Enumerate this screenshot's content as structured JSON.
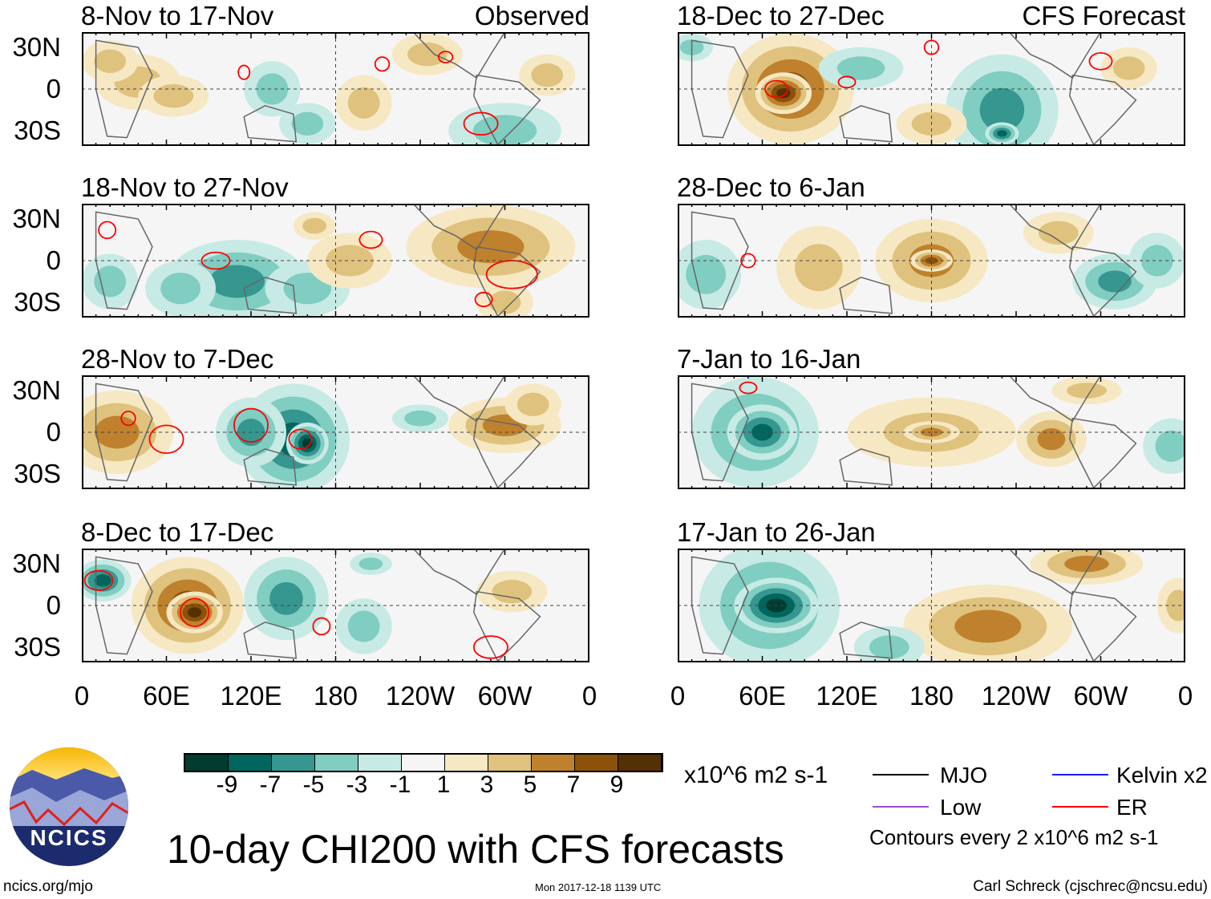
{
  "panels": [
    {
      "title": "8-Nov to 17-Nov",
      "tag": "Observed",
      "blobs": [
        [
          40,
          5,
          30,
          20,
          3
        ],
        [
          65,
          -5,
          25,
          15,
          3
        ],
        [
          135,
          0,
          20,
          20,
          -3
        ],
        [
          160,
          -25,
          20,
          15,
          -3
        ],
        [
          245,
          25,
          25,
          15,
          3
        ],
        [
          300,
          -30,
          40,
          20,
          -3
        ],
        [
          330,
          10,
          20,
          15,
          3
        ],
        [
          20,
          20,
          20,
          15,
          3
        ],
        [
          200,
          -10,
          20,
          20,
          3
        ]
      ],
      "er": [
        [
          283,
          -25,
          12,
          8
        ],
        [
          115,
          12,
          4,
          5
        ],
        [
          213,
          18,
          5,
          5
        ],
        [
          258,
          23,
          5,
          4
        ]
      ]
    },
    {
      "title": "18-Nov to 27-Nov",
      "blobs": [
        [
          110,
          -15,
          50,
          30,
          -5
        ],
        [
          70,
          -20,
          25,
          20,
          -3
        ],
        [
          160,
          -20,
          30,
          20,
          -3
        ],
        [
          290,
          10,
          60,
          30,
          5
        ],
        [
          300,
          -30,
          20,
          15,
          3
        ],
        [
          190,
          0,
          30,
          20,
          3
        ],
        [
          165,
          25,
          15,
          10,
          3
        ],
        [
          20,
          -15,
          20,
          20,
          -3
        ]
      ],
      "er": [
        [
          305,
          -10,
          18,
          10
        ],
        [
          95,
          0,
          10,
          6
        ],
        [
          205,
          15,
          8,
          6
        ],
        [
          285,
          -28,
          6,
          5
        ],
        [
          18,
          22,
          6,
          6
        ]
      ]
    },
    {
      "title": "28-Nov to 7-Dec",
      "blobs": [
        [
          25,
          0,
          40,
          30,
          5
        ],
        [
          150,
          -5,
          40,
          40,
          -7
        ],
        [
          160,
          -8,
          15,
          15,
          -9
        ],
        [
          120,
          0,
          25,
          25,
          -5
        ],
        [
          300,
          5,
          40,
          20,
          5
        ],
        [
          320,
          20,
          20,
          15,
          3
        ],
        [
          240,
          10,
          20,
          10,
          -3
        ]
      ],
      "er": [
        [
          60,
          -5,
          12,
          10
        ],
        [
          155,
          -5,
          8,
          7
        ],
        [
          120,
          5,
          12,
          12
        ],
        [
          33,
          10,
          5,
          5
        ]
      ]
    },
    {
      "title": "8-Dec to 17-Dec",
      "blobs": [
        [
          75,
          0,
          40,
          35,
          7
        ],
        [
          80,
          -5,
          20,
          15,
          9
        ],
        [
          15,
          18,
          20,
          15,
          -7
        ],
        [
          145,
          5,
          30,
          30,
          -5
        ],
        [
          200,
          -15,
          20,
          20,
          -3
        ],
        [
          305,
          10,
          25,
          15,
          3
        ],
        [
          205,
          30,
          15,
          8,
          -3
        ]
      ],
      "er": [
        [
          290,
          -30,
          12,
          8
        ],
        [
          12,
          18,
          10,
          7
        ],
        [
          80,
          -5,
          10,
          10
        ],
        [
          170,
          -15,
          6,
          6
        ]
      ]
    },
    {
      "title": "18-Dec to 27-Dec",
      "tag": "CFS Forecast",
      "blobs": [
        [
          80,
          0,
          45,
          40,
          7
        ],
        [
          75,
          -3,
          20,
          15,
          9
        ],
        [
          130,
          15,
          30,
          15,
          -3
        ],
        [
          230,
          -15,
          40,
          40,
          -5
        ],
        [
          230,
          -32,
          12,
          8,
          -7
        ],
        [
          320,
          15,
          20,
          15,
          3
        ],
        [
          180,
          -25,
          25,
          15,
          3
        ],
        [
          10,
          30,
          15,
          10,
          -3
        ]
      ],
      "er": [
        [
          70,
          0,
          8,
          6
        ],
        [
          300,
          20,
          8,
          6
        ],
        [
          180,
          30,
          5,
          5
        ],
        [
          120,
          5,
          6,
          4
        ]
      ]
    },
    {
      "title": "28-Dec to 6-Jan",
      "blobs": [
        [
          180,
          0,
          40,
          30,
          5
        ],
        [
          180,
          0,
          15,
          8,
          7
        ],
        [
          100,
          -5,
          30,
          30,
          3
        ],
        [
          310,
          -15,
          30,
          20,
          -5
        ],
        [
          340,
          0,
          20,
          20,
          -3
        ],
        [
          20,
          -10,
          25,
          25,
          -3
        ],
        [
          270,
          20,
          25,
          15,
          3
        ]
      ],
      "er": [
        [
          50,
          0,
          5,
          5
        ]
      ]
    },
    {
      "title": "7-Jan to 16-Jan",
      "blobs": [
        [
          55,
          0,
          45,
          40,
          -5
        ],
        [
          60,
          0,
          25,
          20,
          -7
        ],
        [
          180,
          0,
          60,
          25,
          3
        ],
        [
          180,
          0,
          20,
          8,
          5
        ],
        [
          265,
          -5,
          25,
          20,
          5
        ],
        [
          290,
          30,
          25,
          10,
          3
        ],
        [
          350,
          -10,
          20,
          20,
          -3
        ]
      ],
      "er": [
        [
          50,
          32,
          6,
          4
        ]
      ]
    },
    {
      "title": "17-Jan to 26-Jan",
      "blobs": [
        [
          65,
          0,
          50,
          45,
          -5
        ],
        [
          70,
          0,
          30,
          20,
          -9
        ],
        [
          220,
          -15,
          60,
          30,
          5
        ],
        [
          290,
          30,
          40,
          15,
          5
        ],
        [
          150,
          -30,
          25,
          15,
          -3
        ],
        [
          355,
          0,
          15,
          20,
          3
        ]
      ],
      "er": []
    }
  ],
  "yticks": [
    "30N",
    "0",
    "30S"
  ],
  "xticks": [
    "0",
    "60E",
    "120E",
    "180",
    "120W",
    "60W",
    "0"
  ],
  "colorbar": {
    "colors": [
      "#003c30",
      "#01665e",
      "#35978f",
      "#80cdc1",
      "#c7eae5",
      "#f5f5f5",
      "#f6e8c3",
      "#dfc27d",
      "#bf812d",
      "#8c510a",
      "#543005"
    ],
    "labels": [
      "-9",
      "-7",
      "-5",
      "-3",
      "-1",
      "1",
      "3",
      "5",
      "7",
      "9"
    ],
    "units": "x10^6 m2 s-1"
  },
  "legend": {
    "mjo": "MJO",
    "kelvin": "Kelvin x2",
    "low": "Low",
    "er": "ER",
    "contours": "Contours every 2 x10^6 m2 s-1"
  },
  "title": "10-day CHI200 with CFS forecasts",
  "logo": "NCICS",
  "url": "ncics.org/mjo",
  "timestamp": "Mon 2017-12-18 1139 UTC",
  "author": "Carl Schreck (cjschrec@ncsu.edu)"
}
